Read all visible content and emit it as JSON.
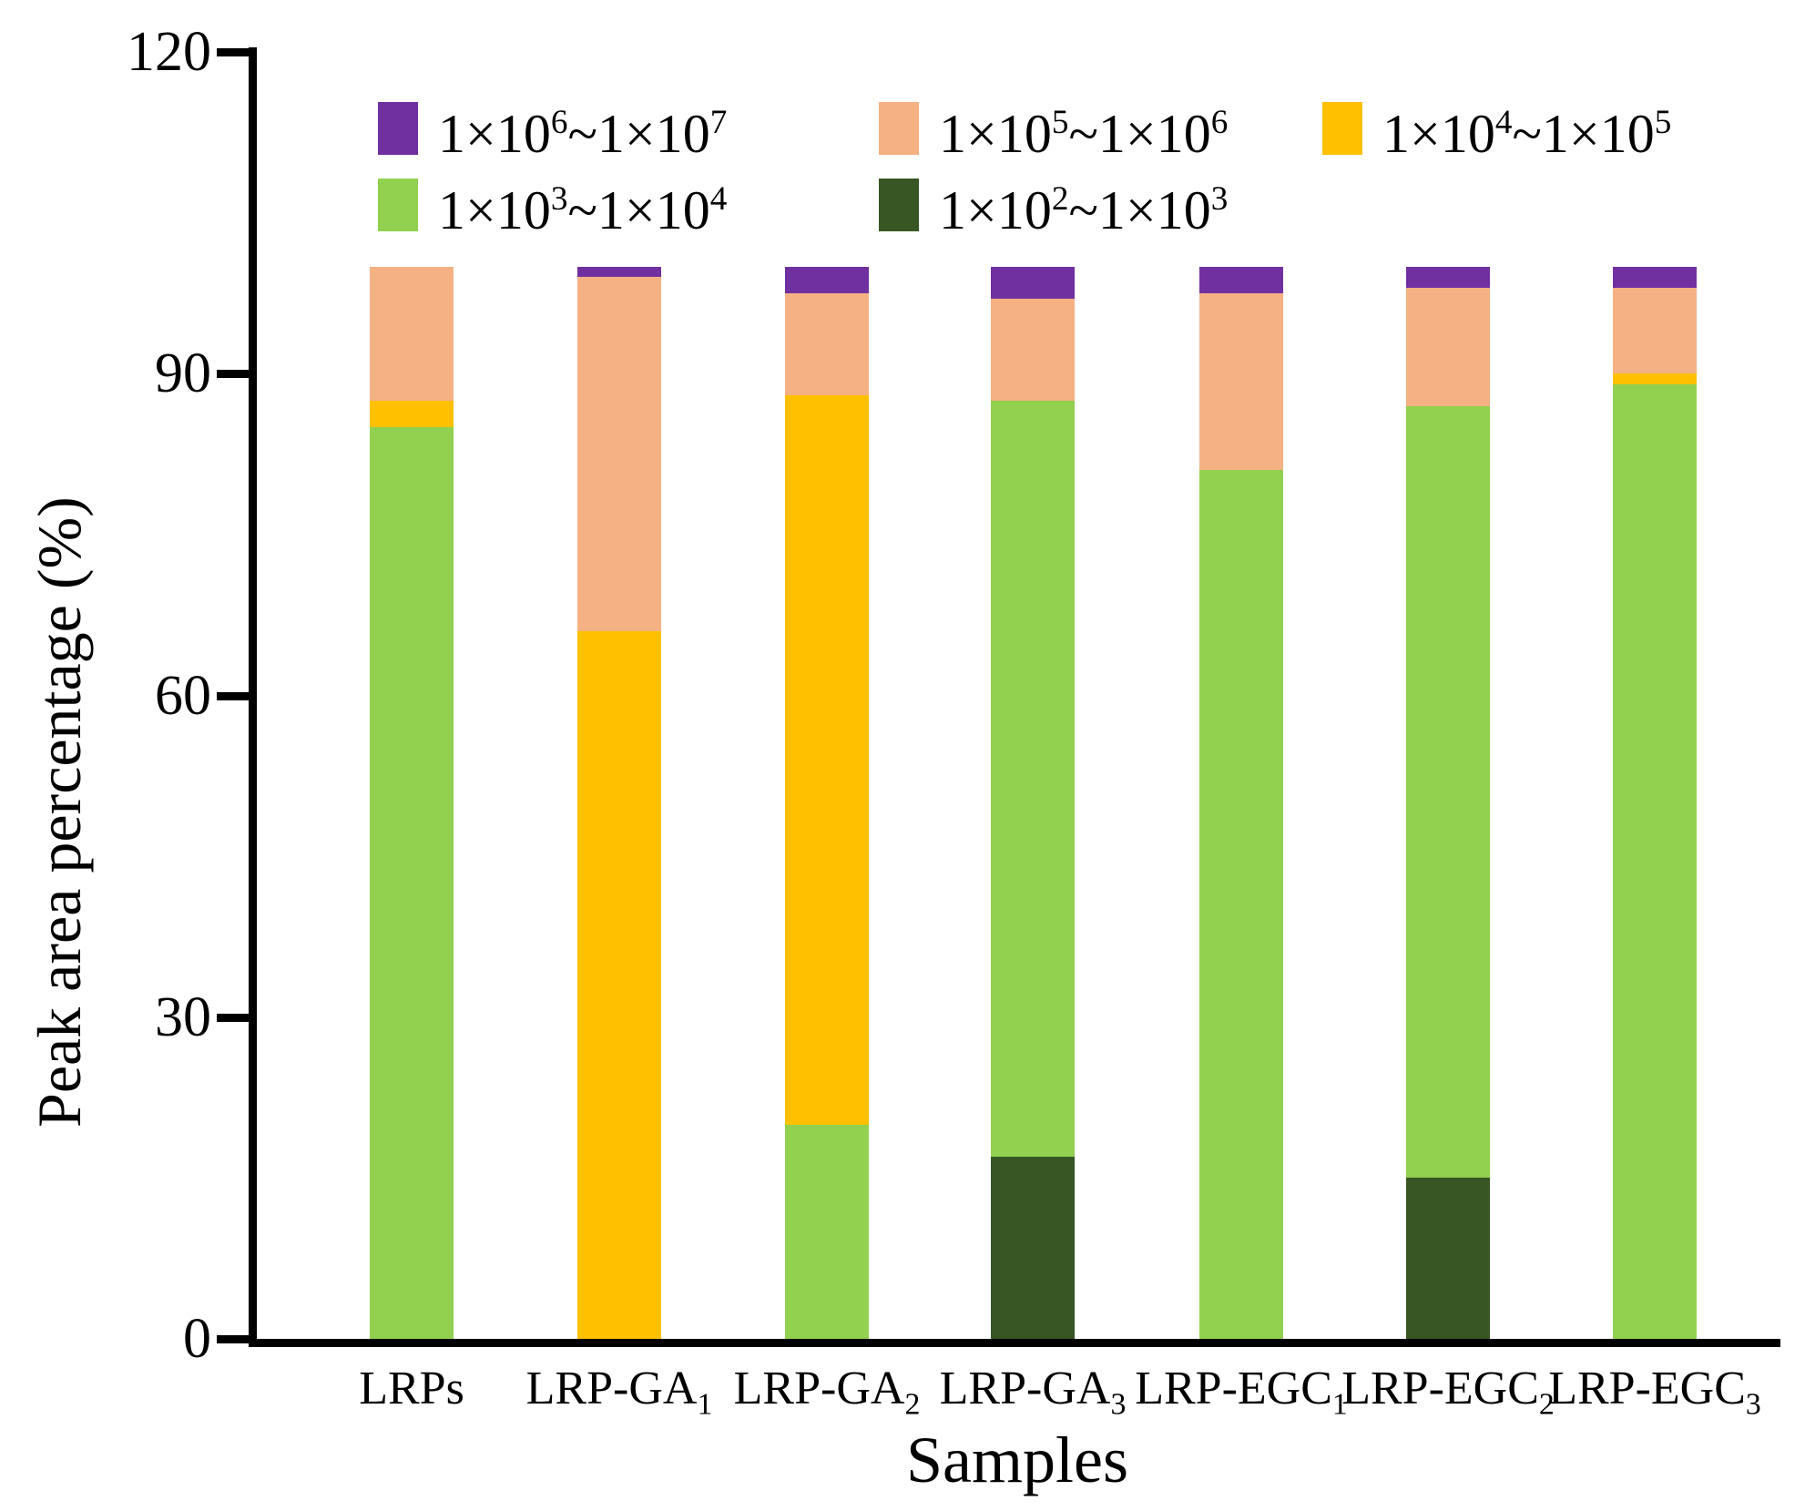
{
  "chart_data": {
    "type": "bar",
    "stacked": true,
    "title": "",
    "xlabel": "Samples",
    "ylabel": "Peak area percentage (%)",
    "ylim": [
      0,
      120
    ],
    "yticks": [
      "0",
      "30",
      "60",
      "90",
      "120"
    ],
    "grid": "off",
    "legend_position": "top-left, two rows inside plot",
    "axis_color": "#000000",
    "categories": [
      {
        "base": "LRPs",
        "sub": ""
      },
      {
        "base": "LRP-GA",
        "sub": "1"
      },
      {
        "base": "LRP-GA",
        "sub": "2"
      },
      {
        "base": "LRP-GA",
        "sub": "3"
      },
      {
        "base": "LRP-EGC",
        "sub": "1"
      },
      {
        "base": "LRP-EGC",
        "sub": "2"
      },
      {
        "base": "LRP-EGC",
        "sub": "3"
      }
    ],
    "series": [
      {
        "name": "1×10^2~1×10^3",
        "label": {
          "pre": "1×10",
          "sup1": "2",
          "mid": "~1×10",
          "sup2": "3"
        },
        "color": "#375623",
        "values": [
          0,
          0,
          0,
          17,
          0,
          15,
          0
        ]
      },
      {
        "name": "1×10^3~1×10^4",
        "label": {
          "pre": "1×10",
          "sup1": "3",
          "mid": "~1×10",
          "sup2": "4"
        },
        "color": "#92D050",
        "values": [
          85,
          0,
          20,
          70.5,
          81,
          72,
          89
        ]
      },
      {
        "name": "1×10^4~1×10^5",
        "label": {
          "pre": "1×10",
          "sup1": "4",
          "mid": "~1×10",
          "sup2": "5"
        },
        "color": "#FFC000",
        "values": [
          2.5,
          66,
          68,
          0,
          0,
          0,
          1
        ]
      },
      {
        "name": "1×10^5~1×10^6",
        "label": {
          "pre": "1×10",
          "sup1": "5",
          "mid": "~1×10",
          "sup2": "6"
        },
        "color": "#F4B183",
        "values": [
          12.5,
          33,
          9.5,
          9.5,
          16.5,
          11,
          8
        ]
      },
      {
        "name": "1×10^6~1×10^7",
        "label": {
          "pre": "1×10",
          "sup1": "6",
          "mid": "~1×10",
          "sup2": "7"
        },
        "color": "#7030A0",
        "values": [
          0,
          1,
          2.5,
          3,
          2.5,
          2,
          2
        ]
      }
    ],
    "legend_display_order": [
      4,
      3,
      2,
      1,
      0
    ]
  }
}
